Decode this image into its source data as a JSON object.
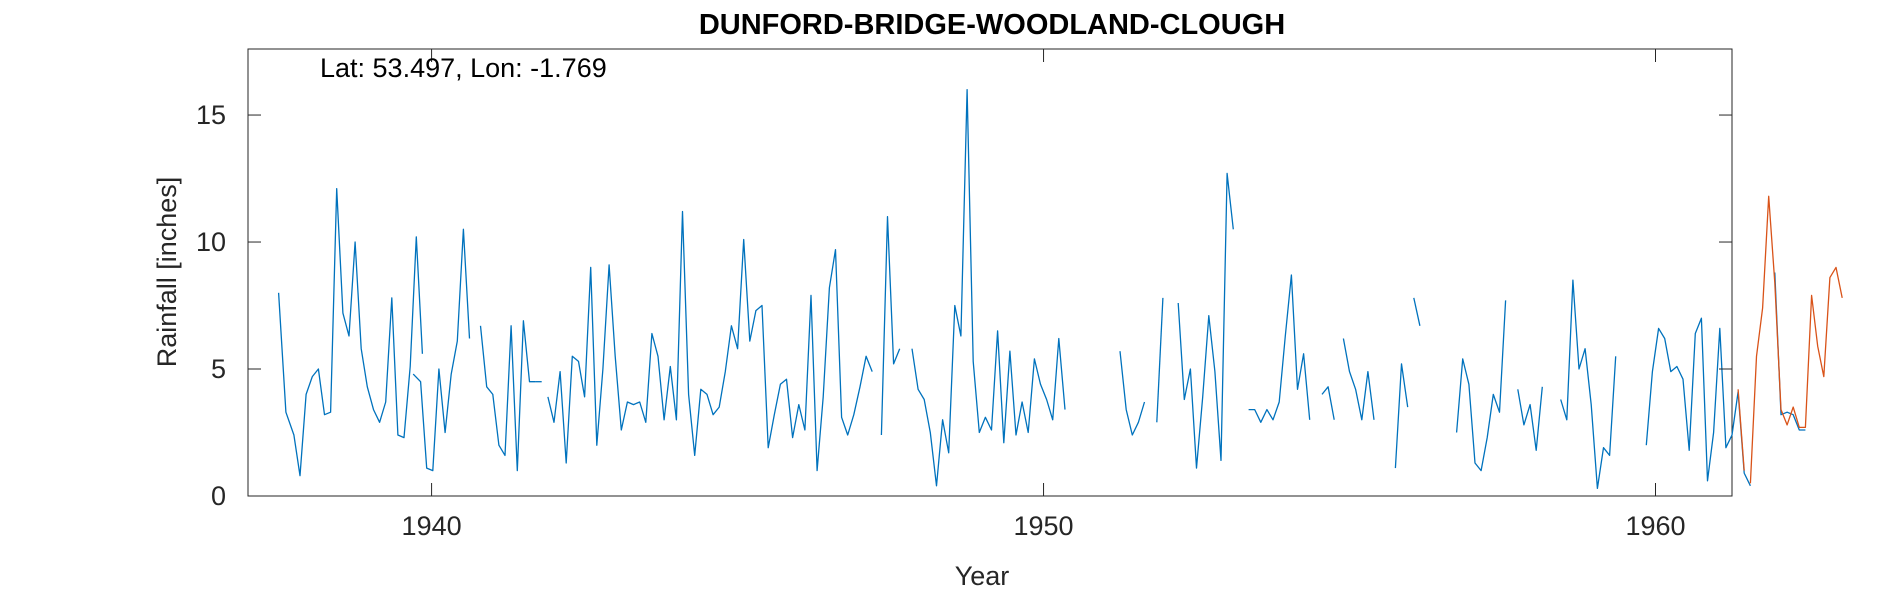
{
  "chart_data": {
    "type": "line",
    "title": "DUNFORD-BRIDGE-WOODLAND-CLOUGH",
    "annotation": "Lat: 53.497, Lon: -1.769",
    "xlabel": "Year",
    "ylabel": "Rainfall [inches]",
    "xlim": [
      1937.0,
      1961.25
    ],
    "ylim": [
      0,
      17.6
    ],
    "xticks": [
      1940,
      1950,
      1960
    ],
    "yticks": [
      0,
      5,
      10,
      15
    ],
    "grid": false,
    "box": true,
    "series": [
      {
        "color": "#0072BD",
        "segments": [
          [
            [
              1937.5,
              8.0
            ],
            [
              1937.62,
              3.3
            ],
            [
              1937.75,
              2.4
            ],
            [
              1937.85,
              0.8
            ],
            [
              1937.95,
              4.0
            ],
            [
              1938.05,
              4.7
            ],
            [
              1938.15,
              5.0
            ],
            [
              1938.25,
              3.2
            ],
            [
              1938.35,
              3.3
            ],
            [
              1938.45,
              12.1
            ],
            [
              1938.55,
              7.2
            ],
            [
              1938.65,
              6.3
            ],
            [
              1938.75,
              10.0
            ],
            [
              1938.85,
              5.8
            ],
            [
              1938.95,
              4.3
            ],
            [
              1939.05,
              3.4
            ],
            [
              1939.15,
              2.9
            ],
            [
              1939.25,
              3.7
            ],
            [
              1939.35,
              7.8
            ],
            [
              1939.45,
              2.4
            ],
            [
              1939.55,
              2.3
            ],
            [
              1939.65,
              5.1
            ],
            [
              1939.75,
              10.2
            ],
            [
              1939.85,
              5.6
            ]
          ],
          [
            [
              1939.7,
              4.8
            ],
            [
              1939.82,
              4.5
            ],
            [
              1939.92,
              1.1
            ],
            [
              1940.02,
              1.0
            ],
            [
              1940.12,
              5.0
            ],
            [
              1940.22,
              2.5
            ],
            [
              1940.32,
              4.8
            ],
            [
              1940.42,
              6.1
            ],
            [
              1940.52,
              10.5
            ],
            [
              1940.62,
              6.2
            ]
          ],
          [
            [
              1940.8,
              6.7
            ],
            [
              1940.9,
              4.3
            ],
            [
              1941.0,
              4.0
            ],
            [
              1941.1,
              2.0
            ],
            [
              1941.2,
              1.6
            ],
            [
              1941.3,
              6.7
            ],
            [
              1941.4,
              1.0
            ],
            [
              1941.5,
              6.9
            ],
            [
              1941.6,
              4.5
            ],
            [
              1941.7,
              4.5
            ]
          ],
          [
            [
              1941.7,
              4.5
            ],
            [
              1941.8,
              4.5
            ]
          ],
          [
            [
              1941.9,
              3.9
            ],
            [
              1942.0,
              2.9
            ],
            [
              1942.1,
              4.9
            ],
            [
              1942.2,
              1.3
            ],
            [
              1942.3,
              5.5
            ],
            [
              1942.4,
              5.3
            ],
            [
              1942.5,
              3.9
            ],
            [
              1942.6,
              9.0
            ],
            [
              1942.7,
              2.0
            ],
            [
              1942.8,
              5.0
            ],
            [
              1942.9,
              9.1
            ],
            [
              1943.0,
              5.5
            ],
            [
              1943.1,
              2.6
            ],
            [
              1943.2,
              3.7
            ],
            [
              1943.3,
              3.6
            ],
            [
              1943.4,
              3.7
            ],
            [
              1943.5,
              2.9
            ],
            [
              1943.6,
              6.4
            ],
            [
              1943.7,
              5.5
            ],
            [
              1943.8,
              3.0
            ],
            [
              1943.9,
              5.1
            ],
            [
              1944.0,
              3.0
            ],
            [
              1944.1,
              11.2
            ],
            [
              1944.2,
              4.0
            ],
            [
              1944.3,
              1.6
            ],
            [
              1944.4,
              4.2
            ],
            [
              1944.5,
              4.0
            ],
            [
              1944.6,
              3.2
            ],
            [
              1944.7,
              3.5
            ],
            [
              1944.8,
              4.9
            ],
            [
              1944.9,
              6.7
            ],
            [
              1945.0,
              5.8
            ],
            [
              1945.1,
              10.1
            ],
            [
              1945.2,
              6.1
            ],
            [
              1945.3,
              7.3
            ],
            [
              1945.4,
              7.5
            ],
            [
              1945.5,
              1.9
            ],
            [
              1945.6,
              3.2
            ],
            [
              1945.7,
              4.4
            ],
            [
              1945.8,
              4.6
            ],
            [
              1945.9,
              2.3
            ],
            [
              1946.0,
              3.6
            ],
            [
              1946.1,
              2.6
            ],
            [
              1946.2,
              7.9
            ],
            [
              1946.3,
              1.0
            ],
            [
              1946.4,
              3.9
            ],
            [
              1946.5,
              8.2
            ],
            [
              1946.6,
              9.7
            ],
            [
              1946.7,
              3.1
            ],
            [
              1946.8,
              2.4
            ],
            [
              1946.9,
              3.2
            ],
            [
              1947.0,
              4.3
            ],
            [
              1947.1,
              5.5
            ],
            [
              1947.2,
              4.9
            ]
          ],
          [
            [
              1947.35,
              2.4
            ],
            [
              1947.45,
              11.0
            ],
            [
              1947.55,
              5.2
            ],
            [
              1947.65,
              5.8
            ]
          ],
          [
            [
              1947.85,
              5.8
            ],
            [
              1947.95,
              4.2
            ],
            [
              1948.05,
              3.8
            ],
            [
              1948.15,
              2.5
            ],
            [
              1948.25,
              0.4
            ],
            [
              1948.35,
              3.0
            ],
            [
              1948.45,
              1.7
            ],
            [
              1948.55,
              7.5
            ],
            [
              1948.65,
              6.3
            ],
            [
              1948.75,
              16.0
            ],
            [
              1948.85,
              5.3
            ],
            [
              1948.95,
              2.5
            ],
            [
              1949.05,
              3.1
            ],
            [
              1949.15,
              2.6
            ],
            [
              1949.25,
              6.5
            ],
            [
              1949.35,
              2.1
            ],
            [
              1949.45,
              5.7
            ],
            [
              1949.55,
              2.4
            ],
            [
              1949.65,
              3.7
            ],
            [
              1949.75,
              2.5
            ],
            [
              1949.85,
              5.4
            ],
            [
              1949.95,
              4.4
            ],
            [
              1950.05,
              3.8
            ],
            [
              1950.15,
              3.0
            ],
            [
              1950.25,
              6.2
            ],
            [
              1950.35,
              3.4
            ]
          ],
          [
            [
              1951.25,
              5.7
            ],
            [
              1951.35,
              3.4
            ],
            [
              1951.45,
              2.4
            ],
            [
              1951.55,
              2.9
            ],
            [
              1951.65,
              3.7
            ]
          ],
          [
            [
              1951.85,
              2.9
            ],
            [
              1951.95,
              7.8
            ]
          ],
          [
            [
              1952.2,
              7.6
            ],
            [
              1952.3,
              3.8
            ],
            [
              1952.4,
              5.0
            ],
            [
              1952.5,
              1.1
            ],
            [
              1952.6,
              3.9
            ],
            [
              1952.7,
              7.1
            ],
            [
              1952.8,
              4.9
            ],
            [
              1952.9,
              1.4
            ],
            [
              1953.0,
              12.7
            ],
            [
              1953.1,
              10.5
            ]
          ],
          [
            [
              1953.35,
              3.4
            ],
            [
              1953.45,
              3.4
            ],
            [
              1953.55,
              2.9
            ],
            [
              1953.65,
              3.4
            ],
            [
              1953.75,
              3.0
            ],
            [
              1953.85,
              3.7
            ],
            [
              1953.95,
              6.3
            ],
            [
              1954.05,
              8.7
            ],
            [
              1954.15,
              4.2
            ],
            [
              1954.25,
              5.6
            ],
            [
              1954.35,
              3.0
            ]
          ],
          [
            [
              1954.55,
              4.0
            ],
            [
              1954.65,
              4.3
            ],
            [
              1954.75,
              3.0
            ]
          ],
          [
            [
              1954.9,
              6.2
            ],
            [
              1955.0,
              4.9
            ],
            [
              1955.1,
              4.2
            ],
            [
              1955.2,
              3.0
            ],
            [
              1955.3,
              4.9
            ],
            [
              1955.4,
              3.0
            ]
          ],
          [
            [
              1955.75,
              1.1
            ],
            [
              1955.85,
              5.2
            ],
            [
              1955.95,
              3.5
            ]
          ],
          [
            [
              1956.05,
              7.8
            ],
            [
              1956.15,
              6.7
            ]
          ],
          [
            [
              1956.75,
              2.5
            ],
            [
              1956.85,
              5.4
            ],
            [
              1956.95,
              4.4
            ],
            [
              1957.05,
              1.3
            ],
            [
              1957.15,
              1.0
            ],
            [
              1957.25,
              2.3
            ],
            [
              1957.35,
              4.0
            ],
            [
              1957.45,
              3.3
            ],
            [
              1957.55,
              7.7
            ]
          ],
          [
            [
              1957.75,
              4.2
            ],
            [
              1957.85,
              2.8
            ],
            [
              1957.95,
              3.6
            ],
            [
              1958.05,
              1.8
            ],
            [
              1958.15,
              4.3
            ]
          ],
          [
            [
              1958.45,
              3.8
            ],
            [
              1958.55,
              3.0
            ],
            [
              1958.65,
              8.5
            ],
            [
              1958.75,
              5.0
            ],
            [
              1958.85,
              5.8
            ],
            [
              1958.95,
              3.6
            ],
            [
              1959.05,
              0.3
            ],
            [
              1959.15,
              1.9
            ],
            [
              1959.25,
              1.6
            ],
            [
              1959.35,
              5.5
            ]
          ],
          [
            [
              1959.85,
              2.0
            ],
            [
              1959.95,
              4.9
            ],
            [
              1960.05,
              6.6
            ],
            [
              1960.15,
              6.2
            ],
            [
              1960.25,
              4.9
            ],
            [
              1960.35,
              5.1
            ],
            [
              1960.45,
              4.6
            ],
            [
              1960.55,
              1.8
            ],
            [
              1960.65,
              6.4
            ],
            [
              1960.75,
              7.0
            ],
            [
              1960.85,
              0.6
            ],
            [
              1960.95,
              2.5
            ],
            [
              1961.05,
              6.6
            ],
            [
              1961.15,
              1.9
            ],
            [
              1961.25,
              2.4
            ],
            [
              1961.35,
              4.1
            ],
            [
              1961.45,
              0.9
            ],
            [
              1961.55,
              0.4
            ]
          ],
          [
            [
              1961.95,
              8.8
            ],
            [
              1962.05,
              3.2
            ],
            [
              1962.15,
              3.3
            ],
            [
              1962.25,
              3.2
            ],
            [
              1962.35,
              2.6
            ],
            [
              1962.45,
              2.6
            ]
          ]
        ]
      },
      {
        "color": "#D95319",
        "segments": [
          [
            [
              1961.55,
              0.5
            ],
            [
              1961.65,
              5.5
            ],
            [
              1961.75,
              7.4
            ],
            [
              1961.85,
              11.8
            ],
            [
              1961.95,
              8.4
            ],
            [
              1962.05,
              3.4
            ],
            [
              1962.15,
              2.8
            ],
            [
              1962.25,
              3.5
            ],
            [
              1962.35,
              2.7
            ],
            [
              1962.45,
              2.7
            ],
            [
              1962.55,
              7.9
            ],
            [
              1962.65,
              5.9
            ],
            [
              1962.75,
              4.7
            ],
            [
              1962.85,
              8.6
            ],
            [
              1962.95,
              9.0
            ],
            [
              1963.05,
              7.8
            ]
          ],
          [
            [
              1961.35,
              4.2
            ],
            [
              1961.45,
              1.0
            ]
          ]
        ]
      }
    ]
  }
}
